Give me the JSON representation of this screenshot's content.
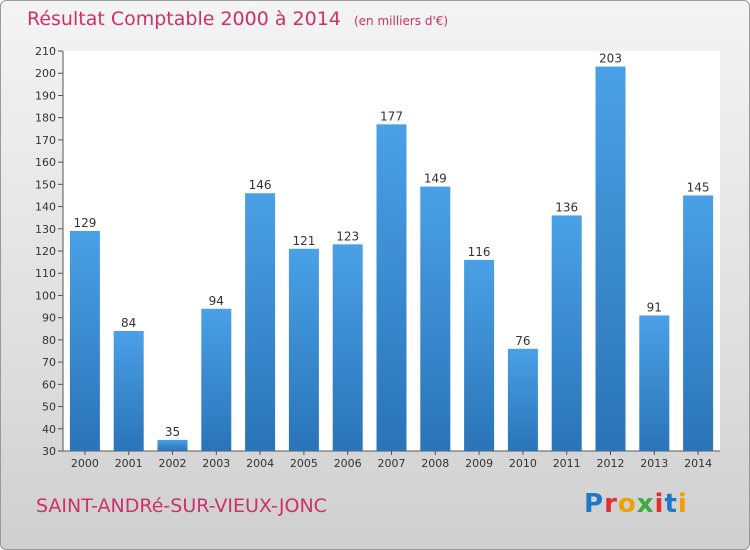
{
  "header": {
    "title": "Résultat Comptable 2000 à 2014",
    "unit": "(en milliers d'€)"
  },
  "footer": {
    "commune": "SAINT-ANDRé-SUR-VIEUX-JONC",
    "logo_letters": [
      "P",
      "r",
      "o",
      "x",
      "i",
      "t",
      "i"
    ],
    "logo_colors": [
      "#1e78c8",
      "#e0302e",
      "#f0a000",
      "#3cab3c",
      "#e0302e",
      "#1e78c8",
      "#f0a000"
    ]
  },
  "chart_data": {
    "type": "bar",
    "title": "Résultat Comptable 2000 à 2014",
    "xlabel": "",
    "ylabel": "",
    "categories": [
      "2000",
      "2001",
      "2002",
      "2003",
      "2004",
      "2005",
      "2006",
      "2007",
      "2008",
      "2009",
      "2010",
      "2011",
      "2012",
      "2013",
      "2014"
    ],
    "values": [
      129,
      84,
      35,
      94,
      146,
      121,
      123,
      177,
      149,
      116,
      76,
      136,
      203,
      91,
      145
    ],
    "ylim": [
      30,
      210
    ],
    "ytick_step": 10,
    "grid": false,
    "bar_color": "#4aa0e6",
    "bar_color_dark": "#2a74b8"
  }
}
